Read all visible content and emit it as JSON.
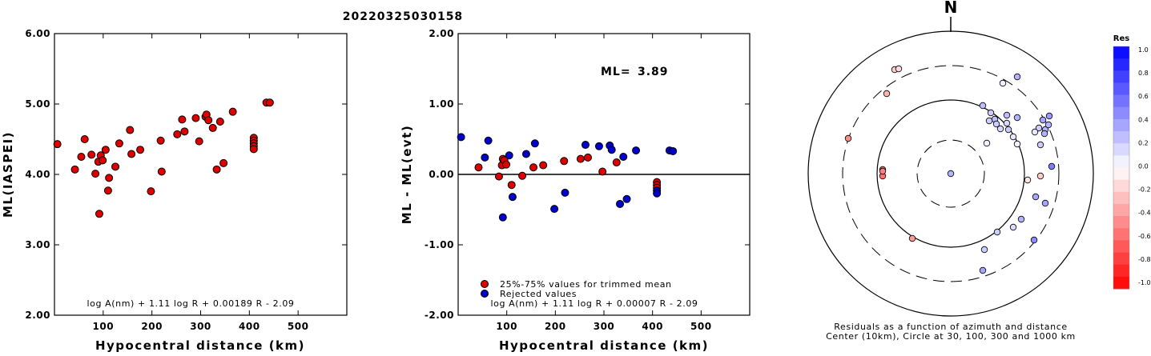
{
  "title": "20220325030158",
  "chart_data": [
    {
      "type": "scatter",
      "ylabel": "ML(IASPEI)",
      "xlabel": "Hypocentral distance (km)",
      "xlim": [
        0,
        600
      ],
      "ylim": [
        2.0,
        6.0
      ],
      "xticks": [
        100,
        200,
        300,
        400,
        500
      ],
      "yticks": [
        "2.00",
        "3.00",
        "4.00",
        "5.00",
        "6.00"
      ],
      "formula": "log A(nm) + 1.11 log R + 0.00189 R - 2.09",
      "marker_color": "#dd0000",
      "points": [
        [
          6,
          4.43
        ],
        [
          42,
          4.07
        ],
        [
          55,
          4.25
        ],
        [
          62,
          4.5
        ],
        [
          76,
          4.28
        ],
        [
          84,
          4.01
        ],
        [
          90,
          4.18
        ],
        [
          92,
          3.44
        ],
        [
          95,
          4.27
        ],
        [
          99,
          4.2
        ],
        [
          105,
          4.35
        ],
        [
          110,
          3.77
        ],
        [
          112,
          3.95
        ],
        [
          125,
          4.11
        ],
        [
          133,
          4.44
        ],
        [
          155,
          4.63
        ],
        [
          158,
          4.29
        ],
        [
          176,
          4.35
        ],
        [
          198,
          3.76
        ],
        [
          218,
          4.48
        ],
        [
          220,
          4.04
        ],
        [
          252,
          4.57
        ],
        [
          262,
          4.78
        ],
        [
          267,
          4.61
        ],
        [
          290,
          4.8
        ],
        [
          297,
          4.47
        ],
        [
          310,
          4.82
        ],
        [
          312,
          4.85
        ],
        [
          316,
          4.77
        ],
        [
          325,
          4.66
        ],
        [
          333,
          4.07
        ],
        [
          340,
          4.75
        ],
        [
          347,
          4.16
        ],
        [
          366,
          4.89
        ],
        [
          409,
          4.52
        ],
        [
          409,
          4.48
        ],
        [
          409,
          4.44
        ],
        [
          409,
          4.4
        ],
        [
          409,
          4.36
        ],
        [
          435,
          5.02
        ],
        [
          442,
          5.02
        ]
      ]
    },
    {
      "type": "scatter",
      "ylabel": "ML - ML(evt)",
      "xlabel": "Hypocentral distance (km)",
      "xlim": [
        0,
        600
      ],
      "ylim": [
        -2.0,
        2.0
      ],
      "xticks": [
        100,
        200,
        300,
        400,
        500
      ],
      "yticks": [
        "-2.00",
        "-1.00",
        "0.00",
        "1.00",
        "2.00"
      ],
      "reference_line": 0,
      "ml_label": "ML=",
      "ml_value": "3.89",
      "formula": "log A(nm) + 1.11 log R + 0.00007 R - 2.09",
      "legend": [
        {
          "label": "25%-75% values for trimmed mean",
          "color": "#dd0000"
        },
        {
          "label": "Rejected values",
          "color": "#0000cc"
        }
      ],
      "series": [
        {
          "name": "25%-75% values for trimmed mean",
          "color": "#dd0000",
          "points": [
            [
              42,
              0.1
            ],
            [
              84,
              -0.03
            ],
            [
              90,
              0.13
            ],
            [
              92,
              0.22
            ],
            [
              95,
              0.2
            ],
            [
              99,
              0.14
            ],
            [
              110,
              -0.15
            ],
            [
              132,
              -0.02
            ],
            [
              155,
              0.1
            ],
            [
              175,
              0.13
            ],
            [
              218,
              0.19
            ],
            [
              252,
              0.22
            ],
            [
              267,
              0.24
            ],
            [
              297,
              0.04
            ],
            [
              326,
              0.17
            ],
            [
              409,
              -0.11
            ],
            [
              409,
              -0.15
            ],
            [
              409,
              -0.19
            ]
          ]
        },
        {
          "name": "Rejected values",
          "color": "#0000cc",
          "points": [
            [
              6,
              0.53
            ],
            [
              55,
              0.24
            ],
            [
              62,
              0.48
            ],
            [
              92,
              -0.61
            ],
            [
              105,
              0.27
            ],
            [
              112,
              -0.32
            ],
            [
              140,
              0.29
            ],
            [
              158,
              0.44
            ],
            [
              198,
              -0.49
            ],
            [
              220,
              -0.26
            ],
            [
              262,
              0.42
            ],
            [
              290,
              0.4
            ],
            [
              312,
              0.41
            ],
            [
              316,
              0.35
            ],
            [
              333,
              -0.42
            ],
            [
              340,
              0.25
            ],
            [
              347,
              -0.35
            ],
            [
              366,
              0.34
            ],
            [
              409,
              -0.23
            ],
            [
              409,
              -0.27
            ],
            [
              435,
              0.34
            ],
            [
              442,
              0.33
            ]
          ]
        }
      ]
    },
    {
      "type": "polar-scatter",
      "north_label": "N",
      "caption_line1": "Residuals as a function of azimuth and distance",
      "caption_line2": "Center (10km), Circle at 30, 100, 300 and 1000 km",
      "rings": [
        30,
        100,
        300,
        1000
      ],
      "colorbar": {
        "title": "Res",
        "labels": [
          "1.0",
          "0.8",
          "0.6",
          "0.4",
          "0.2",
          "0.0",
          "-0.2",
          "-0.4",
          "-0.6",
          "-0.8",
          "-1.0"
        ],
        "top_color": "#0000ff",
        "bottom_color": "#ff0000"
      },
      "points": [
        [
          0,
          0,
          0.3
        ],
        [
          -70,
          -130,
          -0.2
        ],
        [
          -65,
          -131,
          -0.15
        ],
        [
          -80,
          -100,
          -0.3
        ],
        [
          -128,
          -44,
          -0.45
        ],
        [
          -85,
          -5,
          -0.5
        ],
        [
          -85,
          3,
          -0.55
        ],
        [
          -85,
          -3,
          -0.5
        ],
        [
          -48,
          81,
          -0.4
        ],
        [
          65,
          -113,
          0.05
        ],
        [
          83,
          -121,
          0.3
        ],
        [
          40,
          -85,
          0.25
        ],
        [
          50,
          -76,
          0.2
        ],
        [
          55,
          -68,
          0.25
        ],
        [
          57,
          -62,
          0.2
        ],
        [
          70,
          -63,
          0.15
        ],
        [
          48,
          -66,
          0.2
        ],
        [
          62,
          -56,
          0.15
        ],
        [
          72,
          -55,
          0.2
        ],
        [
          70,
          -73,
          0.25
        ],
        [
          83,
          -70,
          0.3
        ],
        [
          45,
          -38,
          0.05
        ],
        [
          78,
          -46,
          0.1
        ],
        [
          83,
          -37,
          0.05
        ],
        [
          110,
          -57,
          0.2
        ],
        [
          115,
          -67,
          0.35
        ],
        [
          118,
          -55,
          0.3
        ],
        [
          123,
          -72,
          0.4
        ],
        [
          122,
          -61,
          0.3
        ],
        [
          117,
          -50,
          0.3
        ],
        [
          105,
          -52,
          0.1
        ],
        [
          112,
          -36,
          0.2
        ],
        [
          126,
          -9,
          0.5
        ],
        [
          112,
          3,
          -0.2
        ],
        [
          96,
          8,
          -0.1
        ],
        [
          106,
          29,
          0.35
        ],
        [
          88,
          57,
          0.3
        ],
        [
          78,
          67,
          0.15
        ],
        [
          58,
          73,
          0.2
        ],
        [
          118,
          37,
          0.35
        ],
        [
          104,
          83,
          0.45
        ],
        [
          42,
          95,
          0.2
        ],
        [
          40,
          121,
          0.35
        ]
      ]
    }
  ]
}
